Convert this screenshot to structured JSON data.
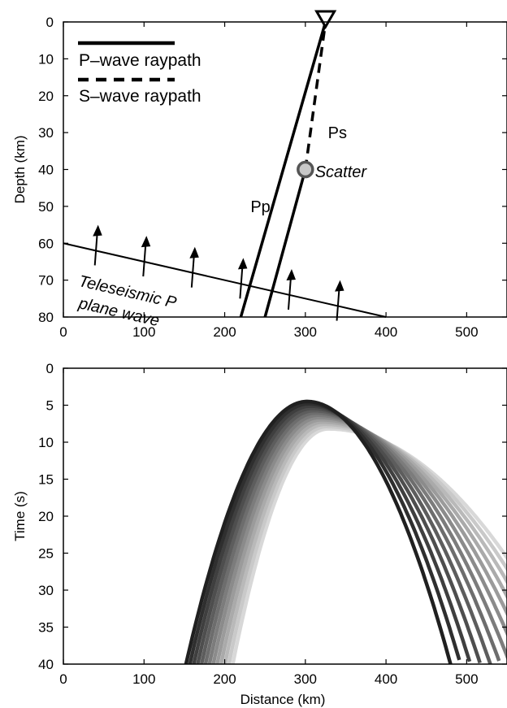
{
  "chart_data": [
    {
      "type": "line",
      "xlabel": "",
      "ylabel": "Depth (km)",
      "xlim": [
        0,
        550
      ],
      "ylim": [
        0,
        80
      ],
      "y_reversed": true,
      "x_ticks": [
        0,
        100,
        200,
        300,
        400,
        500
      ],
      "y_ticks": [
        0,
        10,
        20,
        30,
        40,
        50,
        60,
        70,
        80
      ],
      "legend_position": "top-left",
      "legend": [
        {
          "label": "P–wave raypath",
          "style": "solid"
        },
        {
          "label": "S–wave raypath",
          "style": "dashed"
        }
      ],
      "series": [
        {
          "name": "P–wave raypath",
          "style": "solid",
          "points": [
            [
              220,
              80
            ],
            [
              325,
              0
            ]
          ]
        },
        {
          "name": "P–wave raypath",
          "style": "solid",
          "points": [
            [
              250,
              80
            ],
            [
              300,
              40
            ]
          ]
        },
        {
          "name": "S–wave raypath",
          "style": "dashed",
          "points": [
            [
              300,
              40
            ],
            [
              325,
              0
            ]
          ]
        }
      ],
      "plane_wave": {
        "points": [
          [
            0,
            60
          ],
          [
            400,
            80
          ]
        ]
      },
      "arrows": [
        {
          "x": 40,
          "y_tail": 66,
          "y_head": 55
        },
        {
          "x": 100,
          "y_tail": 69,
          "y_head": 58
        },
        {
          "x": 160,
          "y_tail": 72,
          "y_head": 61
        },
        {
          "x": 220,
          "y_tail": 75,
          "y_head": 64
        },
        {
          "x": 280,
          "y_tail": 78,
          "y_head": 67
        },
        {
          "x": 340,
          "y_tail": 81,
          "y_head": 70
        }
      ],
      "station": {
        "x": 325,
        "y": 0
      },
      "scatter_point": {
        "x": 300,
        "y": 40
      },
      "annotations": [
        {
          "text": "Ps",
          "x": 328,
          "y": 30,
          "italic": false
        },
        {
          "text": "Pp",
          "x": 232,
          "y": 50,
          "italic": false
        },
        {
          "text": "Scatter",
          "x": 312,
          "y": 40.5,
          "italic": true
        },
        {
          "text": "Teleseismic P",
          "x": 18,
          "y": 70,
          "italic": true
        },
        {
          "text": "plane wave",
          "x": 18,
          "y": 76,
          "italic": true
        }
      ]
    },
    {
      "type": "line",
      "xlabel": "Distance (km)",
      "ylabel": "Time (s)",
      "xlim": [
        0,
        550
      ],
      "ylim": [
        0,
        40
      ],
      "y_reversed": true,
      "x_ticks": [
        0,
        100,
        200,
        300,
        400,
        500
      ],
      "y_ticks": [
        0,
        5,
        10,
        15,
        20,
        25,
        30,
        35,
        40
      ],
      "curve_family": {
        "count": 13,
        "apex_x_first": 302,
        "apex_x_last": 328,
        "apex_t_first": 4.5,
        "apex_t_last": 8.2,
        "left_x_at_40_first": 152,
        "left_x_at_40_last": 210,
        "right_x_at_40_first": 480,
        "right_x_at_40_last": 628,
        "color_first": "#202020",
        "color_last": "#d8d8d8"
      }
    }
  ]
}
